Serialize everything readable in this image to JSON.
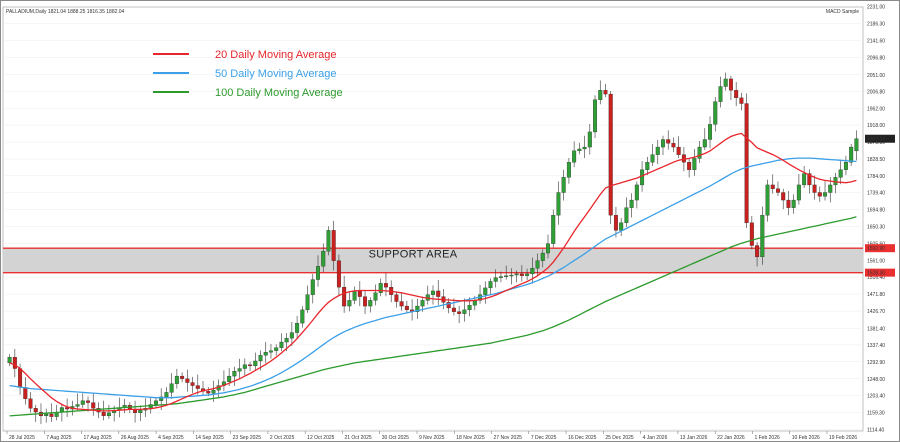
{
  "window": {
    "symbol_info": "PALLADIUM,Daily  1821.04 1888.25 1816.35 1882.04",
    "indicator_label": "MACD Sample"
  },
  "chart_data": {
    "type": "candlestick",
    "ylim": [
      1110,
      2230
    ],
    "yticks": [
      "2231.00",
      "2186.30",
      "2141.60",
      "2096.80",
      "2051.00",
      "2006.80",
      "1962.00",
      "1918.00",
      "1873.30",
      "1828.50",
      "1784.00",
      "1739.40",
      "1694.80",
      "1650.30",
      "1605.60",
      "1561.00",
      "1516.40",
      "1471.80",
      "1426.70",
      "1381.40",
      "1337.40",
      "1292.90",
      "1248.00",
      "1203.40",
      "1159.30",
      "1114.40"
    ],
    "xticks": [
      "28 Jul 2025",
      "7 Aug 2025",
      "17 Aug 2025",
      "26 Aug 2025",
      "4 Sep 2025",
      "14 Sep 2025",
      "23 Sep 2025",
      "2 Oct 2025",
      "12 Oct 2025",
      "21 Oct 2025",
      "30 Oct 2025",
      "9 Nov 2025",
      "18 Nov 2025",
      "27 Nov 2025",
      "7 Dec 2025",
      "16 Dec 2025",
      "25 Dec 2025",
      "4 Jan 2026",
      "13 Jan 2026",
      "22 Jan 2026",
      "1 Feb 2026",
      "10 Feb 2026",
      "19 Feb 2026"
    ],
    "current_price_label": "1882.04",
    "candles_close": [
      1305,
      1275,
      1225,
      1195,
      1170,
      1160,
      1150,
      1155,
      1148,
      1160,
      1172,
      1168,
      1175,
      1180,
      1190,
      1185,
      1170,
      1160,
      1150,
      1158,
      1165,
      1172,
      1178,
      1168,
      1158,
      1165,
      1170,
      1180,
      1190,
      1200,
      1212,
      1235,
      1255,
      1248,
      1238,
      1230,
      1222,
      1215,
      1210,
      1218,
      1230,
      1240,
      1255,
      1268,
      1275,
      1285,
      1282,
      1295,
      1310,
      1318,
      1322,
      1330,
      1345,
      1355,
      1370,
      1395,
      1430,
      1470,
      1510,
      1545,
      1585,
      1640,
      1560,
      1490,
      1440,
      1455,
      1480,
      1465,
      1440,
      1455,
      1475,
      1500,
      1490,
      1470,
      1452,
      1440,
      1430,
      1425,
      1440,
      1455,
      1470,
      1480,
      1465,
      1450,
      1435,
      1425,
      1420,
      1430,
      1442,
      1455,
      1470,
      1488,
      1505,
      1515,
      1518,
      1520,
      1522,
      1525,
      1520,
      1525,
      1540,
      1560,
      1580,
      1605,
      1680,
      1740,
      1780,
      1820,
      1850,
      1855,
      1860,
      1900,
      1985,
      2010,
      2000,
      1680,
      1640,
      1660,
      1700,
      1720,
      1760,
      1800,
      1820,
      1840,
      1860,
      1880,
      1870,
      1860,
      1840,
      1820,
      1800,
      1830,
      1860,
      1880,
      1920,
      1980,
      2020,
      2040,
      2010,
      1990,
      1975,
      1660,
      1600,
      1570,
      1680,
      1760,
      1750,
      1740,
      1720,
      1700,
      1720,
      1760,
      1790,
      1760,
      1740,
      1730,
      1740,
      1760,
      1780,
      1800,
      1820,
      1860,
      1882
    ],
    "candles_open": [
      1290,
      1305,
      1275,
      1225,
      1195,
      1170,
      1160,
      1150,
      1155,
      1148,
      1160,
      1172,
      1168,
      1175,
      1180,
      1190,
      1185,
      1170,
      1160,
      1150,
      1158,
      1165,
      1172,
      1178,
      1168,
      1158,
      1165,
      1170,
      1180,
      1190,
      1200,
      1212,
      1235,
      1255,
      1248,
      1238,
      1230,
      1222,
      1215,
      1210,
      1218,
      1230,
      1240,
      1255,
      1268,
      1275,
      1285,
      1282,
      1295,
      1310,
      1318,
      1322,
      1330,
      1345,
      1355,
      1370,
      1395,
      1430,
      1470,
      1510,
      1545,
      1585,
      1640,
      1560,
      1490,
      1440,
      1455,
      1480,
      1465,
      1440,
      1455,
      1475,
      1500,
      1490,
      1470,
      1452,
      1440,
      1430,
      1425,
      1440,
      1455,
      1470,
      1480,
      1465,
      1450,
      1435,
      1425,
      1420,
      1430,
      1442,
      1455,
      1470,
      1488,
      1505,
      1515,
      1518,
      1520,
      1522,
      1525,
      1520,
      1525,
      1540,
      1560,
      1580,
      1605,
      1680,
      1740,
      1780,
      1820,
      1850,
      1855,
      1860,
      1900,
      1985,
      2010,
      2000,
      1680,
      1640,
      1660,
      1700,
      1720,
      1760,
      1800,
      1820,
      1840,
      1860,
      1880,
      1870,
      1860,
      1840,
      1820,
      1800,
      1830,
      1860,
      1880,
      1920,
      1980,
      2020,
      2040,
      2010,
      1990,
      1975,
      1660,
      1600,
      1570,
      1680,
      1760,
      1750,
      1740,
      1720,
      1700,
      1720,
      1760,
      1790,
      1760,
      1740,
      1730,
      1740,
      1760,
      1780,
      1800,
      1820,
      1850
    ],
    "ma20": [
      1290,
      1285,
      1275,
      1262,
      1248,
      1235,
      1222,
      1210,
      1198,
      1188,
      1180,
      1174,
      1170,
      1168,
      1167,
      1166,
      1165,
      1164,
      1163,
      1163,
      1164,
      1165,
      1166,
      1167,
      1167,
      1167,
      1168,
      1169,
      1171,
      1174,
      1178,
      1183,
      1189,
      1195,
      1201,
      1207,
      1212,
      1216,
      1219,
      1222,
      1226,
      1231,
      1236,
      1242,
      1248,
      1255,
      1262,
      1270,
      1278,
      1286,
      1295,
      1305,
      1316,
      1328,
      1340,
      1354,
      1370,
      1386,
      1403,
      1420,
      1436,
      1450,
      1460,
      1468,
      1474,
      1478,
      1480,
      1481,
      1481,
      1481,
      1481,
      1481,
      1480,
      1479,
      1477,
      1475,
      1472,
      1469,
      1466,
      1463,
      1461,
      1459,
      1458,
      1457,
      1456,
      1455,
      1454,
      1454,
      1454,
      1455,
      1457,
      1460,
      1464,
      1469,
      1475,
      1481,
      1487,
      1493,
      1499,
      1505,
      1512,
      1520,
      1530,
      1541,
      1556,
      1574,
      1594,
      1615,
      1637,
      1657,
      1676,
      1695,
      1715,
      1735,
      1752,
      1758,
      1762,
      1766,
      1770,
      1774,
      1778,
      1784,
      1790,
      1796,
      1802,
      1808,
      1814,
      1820,
      1825,
      1828,
      1830,
      1833,
      1838,
      1843,
      1850,
      1860,
      1870,
      1880,
      1888,
      1893,
      1896,
      1884,
      1872,
      1858,
      1852,
      1846,
      1840,
      1833,
      1825,
      1816,
      1808,
      1800,
      1793,
      1786,
      1780,
      1775,
      1772,
      1770,
      1768,
      1767,
      1766,
      1768,
      1772
    ],
    "ma50": [
      1230,
      1228,
      1226,
      1224,
      1222,
      1221,
      1220,
      1219,
      1218,
      1217,
      1216,
      1215,
      1214,
      1213,
      1212,
      1211,
      1210,
      1209,
      1208,
      1207,
      1206,
      1205,
      1204,
      1203,
      1202,
      1201,
      1200,
      1199,
      1198,
      1198,
      1198,
      1198,
      1199,
      1200,
      1201,
      1202,
      1203,
      1204,
      1205,
      1207,
      1209,
      1211,
      1214,
      1217,
      1220,
      1224,
      1228,
      1233,
      1238,
      1244,
      1250,
      1257,
      1264,
      1272,
      1280,
      1289,
      1298,
      1308,
      1318,
      1328,
      1338,
      1348,
      1357,
      1365,
      1372,
      1378,
      1384,
      1389,
      1394,
      1398,
      1402,
      1406,
      1410,
      1413,
      1416,
      1419,
      1422,
      1425,
      1428,
      1431,
      1434,
      1437,
      1440,
      1443,
      1446,
      1449,
      1452,
      1455,
      1458,
      1461,
      1464,
      1467,
      1470,
      1473,
      1477,
      1481,
      1485,
      1489,
      1493,
      1497,
      1502,
      1507,
      1513,
      1519,
      1526,
      1534,
      1542,
      1551,
      1560,
      1569,
      1578,
      1588,
      1598,
      1608,
      1617,
      1624,
      1631,
      1638,
      1645,
      1652,
      1659,
      1666,
      1673,
      1680,
      1687,
      1694,
      1701,
      1708,
      1715,
      1722,
      1729,
      1736,
      1743,
      1750,
      1757,
      1765,
      1773,
      1781,
      1789,
      1796,
      1802,
      1806,
      1810,
      1813,
      1816,
      1819,
      1822,
      1825,
      1827,
      1829,
      1830,
      1831,
      1831,
      1831,
      1830,
      1829,
      1828,
      1827,
      1826,
      1825,
      1824,
      1823,
      1822
    ],
    "ma100": [
      1150,
      1151,
      1152,
      1153,
      1154,
      1155,
      1156,
      1157,
      1158,
      1159,
      1160,
      1161,
      1162,
      1163,
      1164,
      1165,
      1166,
      1167,
      1168,
      1169,
      1170,
      1171,
      1172,
      1173,
      1174,
      1175,
      1176,
      1177,
      1178,
      1179,
      1180,
      1181,
      1182,
      1184,
      1186,
      1188,
      1190,
      1192,
      1194,
      1196,
      1198,
      1200,
      1203,
      1206,
      1209,
      1212,
      1216,
      1220,
      1224,
      1228,
      1232,
      1236,
      1240,
      1244,
      1248,
      1252,
      1256,
      1260,
      1264,
      1268,
      1272,
      1275,
      1278,
      1281,
      1284,
      1287,
      1290,
      1292,
      1294,
      1296,
      1298,
      1300,
      1302,
      1304,
      1306,
      1308,
      1310,
      1312,
      1314,
      1316,
      1318,
      1320,
      1322,
      1324,
      1326,
      1328,
      1330,
      1332,
      1334,
      1336,
      1338,
      1340,
      1342,
      1345,
      1348,
      1351,
      1354,
      1357,
      1360,
      1363,
      1367,
      1371,
      1375,
      1380,
      1385,
      1391,
      1397,
      1403,
      1410,
      1417,
      1424,
      1431,
      1438,
      1445,
      1452,
      1458,
      1464,
      1470,
      1476,
      1482,
      1488,
      1494,
      1500,
      1506,
      1512,
      1518,
      1524,
      1530,
      1536,
      1542,
      1548,
      1554,
      1560,
      1566,
      1572,
      1578,
      1584,
      1590,
      1596,
      1601,
      1606,
      1610,
      1614,
      1618,
      1621,
      1624,
      1627,
      1630,
      1633,
      1636,
      1639,
      1642,
      1645,
      1648,
      1651,
      1654,
      1657,
      1660,
      1663,
      1666,
      1669,
      1672,
      1676
    ],
    "support_zone": {
      "label": "SUPPORT AREA",
      "upper": 1592.9,
      "lower": 1528.3,
      "upper_label": "1592.90",
      "lower_label": "1528.30"
    },
    "legend": [
      {
        "label": "20 Daily Moving Average",
        "color": "#e8262b"
      },
      {
        "label": "50 Daily Moving Average",
        "color": "#3ca0e8"
      },
      {
        "label": "100 Daily Moving Average",
        "color": "#2c9a2c"
      }
    ],
    "colors": {
      "bull": "#2f9e36",
      "bear": "#c8211f",
      "zone_fill": "#d3d3d3",
      "zone_line": "#e83030"
    }
  }
}
